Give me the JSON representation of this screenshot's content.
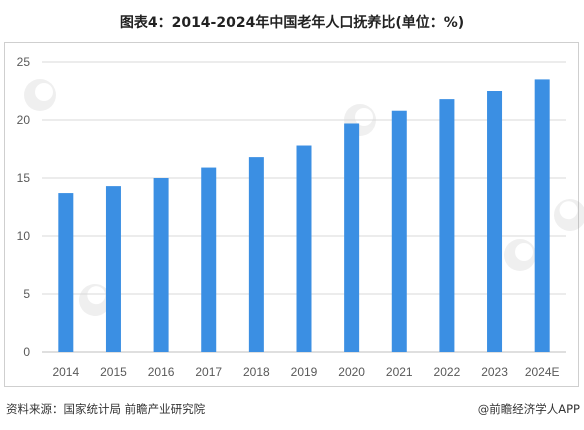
{
  "title": "图表4：2014-2024年中国老年人口抚养比(单位：%)",
  "chart_data": {
    "type": "bar",
    "categories": [
      "2014",
      "2015",
      "2016",
      "2017",
      "2018",
      "2019",
      "2020",
      "2021",
      "2022",
      "2023",
      "2024E"
    ],
    "values": [
      13.7,
      14.3,
      15.0,
      15.9,
      16.8,
      17.8,
      19.7,
      20.8,
      21.8,
      22.5,
      23.5
    ],
    "ylim": [
      0,
      25
    ],
    "yticks": [
      0,
      5,
      10,
      15,
      20,
      25
    ],
    "grid": true,
    "bar_color": "#3b8fe3"
  },
  "footer": {
    "source": "资料来源：国家统计局 前瞻产业研究院",
    "credit": "@前瞻经济学人APP"
  },
  "watermark_text": "前瞻产业研究院"
}
